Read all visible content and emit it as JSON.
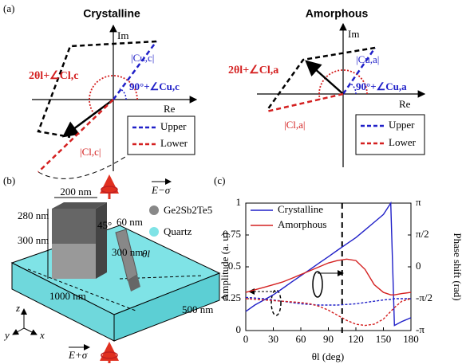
{
  "panel_a": {
    "label": "(a)",
    "crystalline": {
      "title": "Crystalline",
      "im": "Im",
      "re": "Re",
      "angle_lower": "2θl+∠Cl,c",
      "mag_upper": "|Cu,c|",
      "angle_upper": "90°+∠Cu,c",
      "mag_lower": "|Cl,c|",
      "legend": [
        "Upper",
        "Lower"
      ]
    },
    "amorphous": {
      "title": "Amorphous",
      "im": "Im",
      "re": "Re",
      "angle_lower": "2θl+∠Cl,a",
      "mag_upper": "|Cu,a|",
      "angle_upper": "90°+∠Cu,a",
      "mag_lower": "|Cl,a|",
      "legend": [
        "Upper",
        "Lower"
      ]
    }
  },
  "panel_b": {
    "label": "(b)",
    "dims": [
      "200 nm",
      "280 nm",
      "300 nm",
      "45°",
      "60 nm",
      "300 nm",
      "θl",
      "1000 nm",
      "500 nm"
    ],
    "legend": [
      "Ge2Sb2Te5",
      "Quartz"
    ],
    "field_top": "E−σ",
    "field_bottom": "E+σ",
    "axes": [
      "z",
      "y",
      "x"
    ]
  },
  "chart_data": {
    "type": "line",
    "label": "(c)",
    "x_label": "θl (deg)",
    "y_label": "Amplitude (a. u)",
    "y2_label": "Phase shift (rad)",
    "x": [
      0,
      10,
      20,
      30,
      40,
      50,
      60,
      70,
      80,
      90,
      100,
      110,
      120,
      130,
      140,
      150,
      158,
      162,
      170,
      180
    ],
    "xlim": [
      0,
      180
    ],
    "xticks": [
      0,
      30,
      60,
      90,
      120,
      150,
      180
    ],
    "ylim": [
      0,
      1
    ],
    "yticks": [
      0,
      0.25,
      0.5,
      0.75,
      1
    ],
    "y2lim": [
      -3.1416,
      3.1416
    ],
    "y2ticks": [
      {
        "value": -3.1416,
        "label": "-π"
      },
      {
        "value": -1.5708,
        "label": "-π/2"
      },
      0,
      {
        "value": 1.5708,
        "label": "π/2"
      },
      {
        "value": 3.1416,
        "label": "π"
      }
    ],
    "vline": 105,
    "series": [
      {
        "name": "Crystalline",
        "color": "#2020c8",
        "style": "solid",
        "axis": "y2",
        "values": [
          -2.2,
          -1.88,
          -1.63,
          -1.38,
          -1.07,
          -0.75,
          -0.44,
          -0.13,
          0.19,
          0.5,
          0.82,
          1.13,
          1.44,
          1.82,
          2.2,
          2.58,
          3.14,
          -2.89,
          -2.7,
          -2.51
        ]
      },
      {
        "name": "Amorphous",
        "color": "#d42020",
        "style": "solid",
        "axis": "y2",
        "values": [
          -1.26,
          -1.13,
          -1.01,
          -0.88,
          -0.75,
          -0.57,
          -0.38,
          -0.19,
          0,
          0.19,
          0.31,
          0.38,
          0.31,
          -0.13,
          -0.88,
          -1.26,
          -1.38,
          -1.38,
          -1.32,
          -1.26
        ]
      },
      {
        "color": "#2020c8",
        "style": "dashed",
        "values": [
          0.26,
          0.255,
          0.25,
          0.24,
          0.23,
          0.22,
          0.21,
          0.205,
          0.2,
          0.2,
          0.2,
          0.205,
          0.21,
          0.22,
          0.23,
          0.24,
          0.245,
          0.25,
          0.25,
          0.25
        ]
      },
      {
        "color": "#d42020",
        "style": "dashed",
        "values": [
          0.25,
          0.245,
          0.24,
          0.235,
          0.23,
          0.225,
          0.22,
          0.21,
          0.19,
          0.16,
          0.12,
          0.08,
          0.05,
          0.04,
          0.05,
          0.09,
          0.15,
          0.18,
          0.23,
          0.25
        ]
      }
    ]
  }
}
